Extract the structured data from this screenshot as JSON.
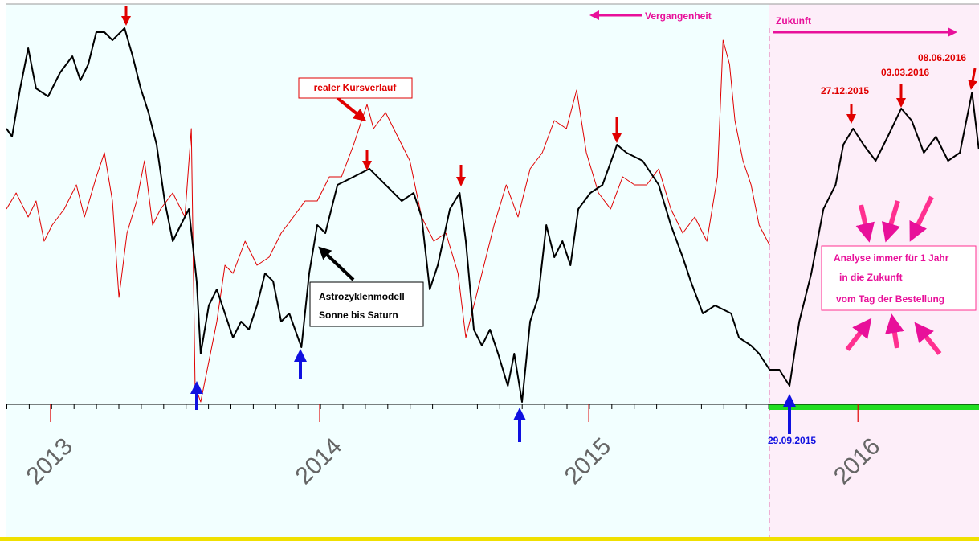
{
  "chart_data": {
    "type": "line",
    "xlim": [
      2012.836,
      2016.45
    ],
    "xticks": [
      2013,
      2014,
      2015,
      2016
    ],
    "ylim": [
      0,
      498
    ],
    "series": [
      {
        "name": "Astrozyklenmodell",
        "color": "#000000",
        "x": [
          2012.836,
          2012.857,
          2012.887,
          2012.917,
          2012.946,
          2012.991,
          2013.036,
          2013.081,
          2013.111,
          2013.14,
          2013.17,
          2013.2,
          2013.23,
          2013.275,
          2013.305,
          2013.335,
          2013.364,
          2013.394,
          2013.424,
          2013.454,
          2013.484,
          2013.514,
          2013.543,
          2013.558,
          2013.588,
          2013.618,
          2013.648,
          2013.678,
          2013.708,
          2013.737,
          2013.767,
          2013.797,
          2013.827,
          2013.857,
          2013.887,
          2013.932,
          2013.961,
          2013.991,
          2014.021,
          2014.066,
          2014.126,
          2014.185,
          2014.245,
          2014.305,
          2014.349,
          2014.379,
          2014.409,
          2014.439,
          2014.484,
          2014.52,
          2014.543,
          2014.573,
          2014.603,
          2014.633,
          2014.663,
          2014.699,
          2014.723,
          2014.752,
          2014.782,
          2014.812,
          2014.842,
          2014.872,
          2014.902,
          2014.932,
          2014.961,
          2015.006,
          2015.051,
          2015.105,
          2015.14,
          2015.2,
          2015.26,
          2015.305,
          2015.349,
          2015.379,
          2015.424,
          2015.469,
          2015.529,
          2015.558,
          2015.603,
          2015.633,
          2015.672,
          2015.708,
          2015.746,
          2015.782,
          2015.827,
          2015.872,
          2015.917,
          2015.946,
          2015.982,
          2016.021,
          2016.066,
          2016.111,
          2016.161,
          2016.2,
          2016.245,
          2016.29,
          2016.335,
          2016.379,
          2016.424,
          2016.449
        ],
        "values": [
          343,
          333,
          393,
          443,
          393,
          383,
          413,
          433,
          403,
          423,
          463,
          463,
          453,
          468,
          433,
          393,
          363,
          323,
          253,
          203,
          223,
          243,
          153,
          63,
          123,
          143,
          113,
          83,
          103,
          93,
          123,
          163,
          153,
          103,
          113,
          71,
          163,
          223,
          213,
          273,
          283,
          293,
          273,
          253,
          263,
          233,
          143,
          173,
          243,
          263,
          203,
          93,
          73,
          93,
          63,
          23,
          63,
          3,
          103,
          133,
          223,
          183,
          203,
          173,
          243,
          263,
          273,
          323,
          313,
          303,
          273,
          223,
          183,
          153,
          113,
          123,
          113,
          83,
          73,
          63,
          43,
          43,
          23,
          103,
          163,
          243,
          273,
          323,
          343,
          323,
          303,
          333,
          368,
          353,
          313,
          333,
          303,
          313,
          388,
          318
        ]
      },
      {
        "name": "realer Kursverlauf",
        "color": "#e00000",
        "x": [
          2012.836,
          2012.872,
          2012.917,
          2012.946,
          2012.976,
          2013.006,
          2013.051,
          2013.096,
          2013.126,
          2013.17,
          2013.2,
          2013.23,
          2013.254,
          2013.284,
          2013.32,
          2013.349,
          2013.379,
          2013.409,
          2013.454,
          2013.499,
          2013.523,
          2013.537,
          2013.558,
          2013.588,
          2013.618,
          2013.648,
          2013.678,
          2013.723,
          2013.767,
          2013.812,
          2013.857,
          2013.902,
          2013.946,
          2013.991,
          2014.036,
          2014.081,
          2014.126,
          2014.176,
          2014.2,
          2014.245,
          2014.29,
          2014.335,
          2014.379,
          2014.424,
          2014.469,
          2014.514,
          2014.543,
          2014.573,
          2014.603,
          2014.648,
          2014.693,
          2014.737,
          2014.782,
          2014.827,
          2014.872,
          2014.917,
          2014.955,
          2014.991,
          2015.036,
          2015.081,
          2015.126,
          2015.17,
          2015.215,
          2015.26,
          2015.305,
          2015.349,
          2015.394,
          2015.439,
          2015.478,
          2015.499,
          2015.523,
          2015.543,
          2015.573,
          2015.603,
          2015.633,
          2015.672
        ],
        "values": [
          243,
          263,
          233,
          253,
          203,
          223,
          243,
          273,
          233,
          283,
          313,
          253,
          133,
          213,
          253,
          303,
          223,
          243,
          263,
          233,
          343,
          23,
          3,
          53,
          103,
          173,
          163,
          203,
          173,
          183,
          213,
          233,
          253,
          253,
          283,
          283,
          323,
          373,
          343,
          363,
          333,
          303,
          233,
          203,
          213,
          163,
          83,
          123,
          163,
          223,
          273,
          233,
          293,
          313,
          353,
          343,
          391,
          313,
          263,
          243,
          283,
          273,
          273,
          293,
          243,
          213,
          233,
          203,
          283,
          453,
          423,
          353,
          303,
          273,
          223,
          198
        ]
      }
    ],
    "annotations": {
      "past": "Vergangenheit",
      "future": "Zukunft",
      "real": "realer Kursverlauf",
      "model": [
        "Astrozyklenmodell",
        "Sonne bis Saturn"
      ],
      "dates": [
        "27.12.2015",
        "03.03.2016",
        "08.06.2016"
      ],
      "start": "29.09.2015",
      "box": [
        "Analyse immer für 1 Jahr",
        "in die Zukunft",
        "vom Tag der Bestellung"
      ]
    }
  }
}
